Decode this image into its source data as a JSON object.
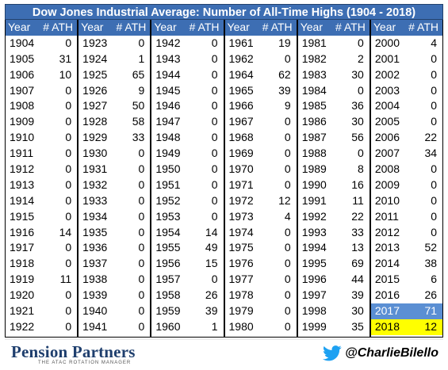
{
  "title": "Dow Jones Industrial Average: Number of All-Time Highs (1904 - 2018)",
  "header": {
    "year": "Year",
    "ath": "# ATH"
  },
  "columns": [
    {
      "rows": [
        {
          "year": "1904",
          "ath": "0"
        },
        {
          "year": "1905",
          "ath": "31"
        },
        {
          "year": "1906",
          "ath": "10"
        },
        {
          "year": "1907",
          "ath": "0"
        },
        {
          "year": "1908",
          "ath": "0"
        },
        {
          "year": "1909",
          "ath": "0"
        },
        {
          "year": "1910",
          "ath": "0"
        },
        {
          "year": "1911",
          "ath": "0"
        },
        {
          "year": "1912",
          "ath": "0"
        },
        {
          "year": "1913",
          "ath": "0"
        },
        {
          "year": "1914",
          "ath": "0"
        },
        {
          "year": "1915",
          "ath": "0"
        },
        {
          "year": "1916",
          "ath": "14"
        },
        {
          "year": "1917",
          "ath": "0"
        },
        {
          "year": "1918",
          "ath": "0"
        },
        {
          "year": "1919",
          "ath": "11"
        },
        {
          "year": "1920",
          "ath": "0"
        },
        {
          "year": "1921",
          "ath": "0"
        },
        {
          "year": "1922",
          "ath": "0"
        }
      ]
    },
    {
      "rows": [
        {
          "year": "1923",
          "ath": "0"
        },
        {
          "year": "1924",
          "ath": "1"
        },
        {
          "year": "1925",
          "ath": "65"
        },
        {
          "year": "1926",
          "ath": "9"
        },
        {
          "year": "1927",
          "ath": "50"
        },
        {
          "year": "1928",
          "ath": "58"
        },
        {
          "year": "1929",
          "ath": "33"
        },
        {
          "year": "1930",
          "ath": "0"
        },
        {
          "year": "1931",
          "ath": "0"
        },
        {
          "year": "1932",
          "ath": "0"
        },
        {
          "year": "1933",
          "ath": "0"
        },
        {
          "year": "1934",
          "ath": "0"
        },
        {
          "year": "1935",
          "ath": "0"
        },
        {
          "year": "1936",
          "ath": "0"
        },
        {
          "year": "1937",
          "ath": "0"
        },
        {
          "year": "1938",
          "ath": "0"
        },
        {
          "year": "1939",
          "ath": "0"
        },
        {
          "year": "1940",
          "ath": "0"
        },
        {
          "year": "1941",
          "ath": "0"
        }
      ]
    },
    {
      "rows": [
        {
          "year": "1942",
          "ath": "0"
        },
        {
          "year": "1943",
          "ath": "0"
        },
        {
          "year": "1944",
          "ath": "0"
        },
        {
          "year": "1945",
          "ath": "0"
        },
        {
          "year": "1946",
          "ath": "0"
        },
        {
          "year": "1947",
          "ath": "0"
        },
        {
          "year": "1948",
          "ath": "0"
        },
        {
          "year": "1949",
          "ath": "0"
        },
        {
          "year": "1950",
          "ath": "0"
        },
        {
          "year": "1951",
          "ath": "0"
        },
        {
          "year": "1952",
          "ath": "0"
        },
        {
          "year": "1953",
          "ath": "0"
        },
        {
          "year": "1954",
          "ath": "14"
        },
        {
          "year": "1955",
          "ath": "49"
        },
        {
          "year": "1956",
          "ath": "15"
        },
        {
          "year": "1957",
          "ath": "0"
        },
        {
          "year": "1958",
          "ath": "26"
        },
        {
          "year": "1959",
          "ath": "39"
        },
        {
          "year": "1960",
          "ath": "1"
        }
      ]
    },
    {
      "rows": [
        {
          "year": "1961",
          "ath": "19"
        },
        {
          "year": "1962",
          "ath": "0"
        },
        {
          "year": "1964",
          "ath": "62"
        },
        {
          "year": "1965",
          "ath": "39"
        },
        {
          "year": "1966",
          "ath": "9"
        },
        {
          "year": "1967",
          "ath": "0"
        },
        {
          "year": "1968",
          "ath": "0"
        },
        {
          "year": "1969",
          "ath": "0"
        },
        {
          "year": "1970",
          "ath": "0"
        },
        {
          "year": "1971",
          "ath": "0"
        },
        {
          "year": "1972",
          "ath": "12"
        },
        {
          "year": "1973",
          "ath": "4"
        },
        {
          "year": "1974",
          "ath": "0"
        },
        {
          "year": "1975",
          "ath": "0"
        },
        {
          "year": "1976",
          "ath": "0"
        },
        {
          "year": "1977",
          "ath": "0"
        },
        {
          "year": "1978",
          "ath": "0"
        },
        {
          "year": "1979",
          "ath": "0"
        },
        {
          "year": "1980",
          "ath": "0"
        }
      ]
    },
    {
      "rows": [
        {
          "year": "1981",
          "ath": "0"
        },
        {
          "year": "1982",
          "ath": "2"
        },
        {
          "year": "1983",
          "ath": "30"
        },
        {
          "year": "1984",
          "ath": "0"
        },
        {
          "year": "1985",
          "ath": "36"
        },
        {
          "year": "1986",
          "ath": "30"
        },
        {
          "year": "1987",
          "ath": "56"
        },
        {
          "year": "1988",
          "ath": "0"
        },
        {
          "year": "1989",
          "ath": "8"
        },
        {
          "year": "1990",
          "ath": "16"
        },
        {
          "year": "1991",
          "ath": "11"
        },
        {
          "year": "1992",
          "ath": "22"
        },
        {
          "year": "1993",
          "ath": "33"
        },
        {
          "year": "1994",
          "ath": "13"
        },
        {
          "year": "1995",
          "ath": "69"
        },
        {
          "year": "1996",
          "ath": "44"
        },
        {
          "year": "1997",
          "ath": "39"
        },
        {
          "year": "1998",
          "ath": "30"
        },
        {
          "year": "1999",
          "ath": "35"
        }
      ]
    },
    {
      "rows": [
        {
          "year": "2000",
          "ath": "4"
        },
        {
          "year": "2001",
          "ath": "0"
        },
        {
          "year": "2002",
          "ath": "0"
        },
        {
          "year": "2003",
          "ath": "0"
        },
        {
          "year": "2004",
          "ath": "0"
        },
        {
          "year": "2005",
          "ath": "0"
        },
        {
          "year": "2006",
          "ath": "22"
        },
        {
          "year": "2007",
          "ath": "34"
        },
        {
          "year": "2008",
          "ath": "0"
        },
        {
          "year": "2009",
          "ath": "0"
        },
        {
          "year": "2010",
          "ath": "0"
        },
        {
          "year": "2011",
          "ath": "0"
        },
        {
          "year": "2012",
          "ath": "0"
        },
        {
          "year": "2013",
          "ath": "52"
        },
        {
          "year": "2014",
          "ath": "38"
        },
        {
          "year": "2015",
          "ath": "6"
        },
        {
          "year": "2016",
          "ath": "26"
        },
        {
          "year": "2017",
          "ath": "71",
          "highlight": "blue"
        },
        {
          "year": "2018",
          "ath": "12",
          "highlight": "yellow"
        }
      ]
    }
  ],
  "footer": {
    "logo": "Pension Partners",
    "logo_tagline": "THE ATAC ROTATION MANAGER",
    "twitter_handle": "@CharlieBilello"
  },
  "colors": {
    "header_blue": "#3d6eb3",
    "highlight_blue": "#5b8fd3",
    "highlight_yellow": "#ffff00",
    "logo_navy": "#1f3f6e",
    "twitter_blue": "#1da1f2"
  }
}
